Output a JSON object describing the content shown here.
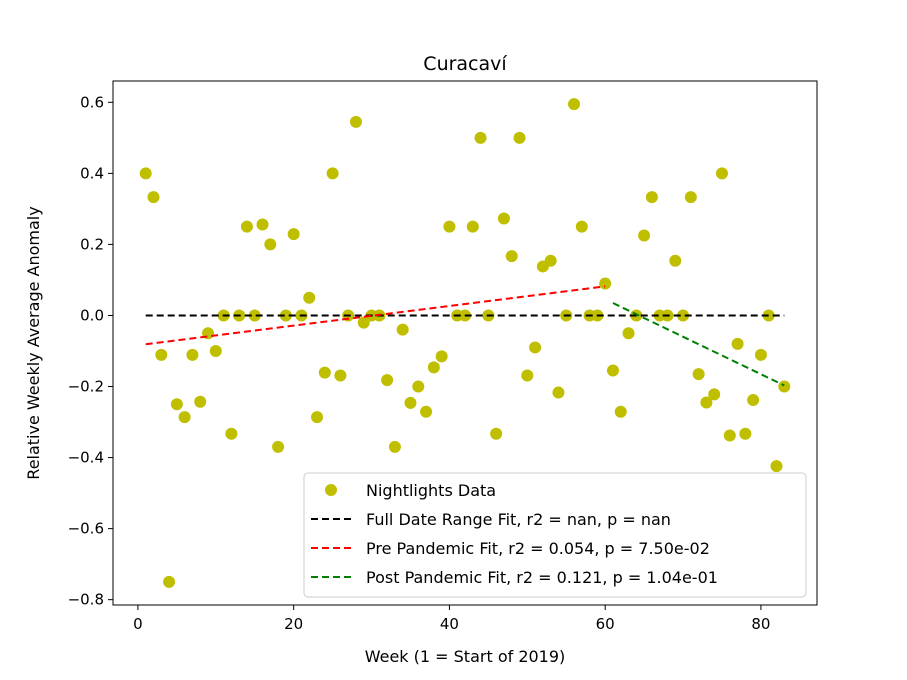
{
  "chart_data": {
    "type": "scatter",
    "title": "Curacaví",
    "xlabel": "Week (1 = Start of 2019)",
    "ylabel": "Relative Weekly Average Anomaly",
    "xlim": [
      -3.2,
      87.2
    ],
    "ylim": [
      -0.815,
      0.66
    ],
    "xticks": [
      0,
      20,
      40,
      60,
      80
    ],
    "yticks": [
      -0.8,
      -0.6,
      -0.4,
      -0.2,
      0.0,
      0.2,
      0.4,
      0.6
    ],
    "xtick_labels": [
      "0",
      "20",
      "40",
      "60",
      "80"
    ],
    "ytick_labels": [
      "−0.8",
      "−0.6",
      "−0.4",
      "−0.2",
      "0.0",
      "0.2",
      "0.4",
      "0.6"
    ],
    "grid": false,
    "legend_position": "lower-right",
    "series": [
      {
        "name": "Nightlights Data",
        "kind": "scatter",
        "color": "#bfbf00",
        "points": [
          [
            1,
            0.4
          ],
          [
            2,
            0.333
          ],
          [
            3,
            -0.111
          ],
          [
            4,
            -0.75
          ],
          [
            5,
            -0.25
          ],
          [
            6,
            -0.286
          ],
          [
            7,
            -0.111
          ],
          [
            8,
            -0.243
          ],
          [
            9,
            -0.05
          ],
          [
            10,
            -0.1
          ],
          [
            11,
            0.0
          ],
          [
            12,
            -0.333
          ],
          [
            13,
            0.0
          ],
          [
            14,
            0.25
          ],
          [
            15,
            0.0
          ],
          [
            16,
            0.256
          ],
          [
            17,
            0.2
          ],
          [
            18,
            -0.37
          ],
          [
            19,
            0.0
          ],
          [
            20,
            0.229
          ],
          [
            21,
            0.0
          ],
          [
            22,
            0.05
          ],
          [
            23,
            -0.286
          ],
          [
            24,
            -0.161
          ],
          [
            25,
            0.4
          ],
          [
            26,
            -0.169
          ],
          [
            27,
            0.0
          ],
          [
            28,
            0.545
          ],
          [
            29,
            -0.02
          ],
          [
            30,
            0.0
          ],
          [
            31,
            0.0
          ],
          [
            32,
            -0.182
          ],
          [
            33,
            -0.37
          ],
          [
            34,
            -0.04
          ],
          [
            35,
            -0.246
          ],
          [
            36,
            -0.2
          ],
          [
            37,
            -0.271
          ],
          [
            38,
            -0.146
          ],
          [
            39,
            -0.115
          ],
          [
            40,
            0.25
          ],
          [
            41,
            0.0
          ],
          [
            42,
            0.0
          ],
          [
            43,
            0.25
          ],
          [
            44,
            0.5
          ],
          [
            45,
            0.0
          ],
          [
            46,
            -0.333
          ],
          [
            47,
            0.273
          ],
          [
            48,
            0.167
          ],
          [
            49,
            0.5
          ],
          [
            50,
            -0.169
          ],
          [
            51,
            -0.09
          ],
          [
            52,
            0.138
          ],
          [
            53,
            0.154
          ],
          [
            54,
            -0.217
          ],
          [
            55,
            0.0
          ],
          [
            56,
            0.595
          ],
          [
            57,
            0.25
          ],
          [
            58,
            0.0
          ],
          [
            59,
            0.0
          ],
          [
            60,
            0.09
          ],
          [
            61,
            -0.155
          ],
          [
            62,
            -0.271
          ],
          [
            63,
            -0.05
          ],
          [
            64,
            0.0
          ],
          [
            65,
            0.225
          ],
          [
            66,
            0.333
          ],
          [
            67,
            0.0
          ],
          [
            68,
            0.0
          ],
          [
            69,
            0.154
          ],
          [
            70,
            0.0
          ],
          [
            71,
            0.333
          ],
          [
            72,
            -0.165
          ],
          [
            73,
            -0.245
          ],
          [
            74,
            -0.222
          ],
          [
            75,
            0.4
          ],
          [
            76,
            -0.338
          ],
          [
            77,
            -0.08
          ],
          [
            78,
            -0.333
          ],
          [
            79,
            -0.238
          ],
          [
            80,
            -0.111
          ],
          [
            81,
            0.0
          ],
          [
            82,
            -0.424
          ],
          [
            83,
            -0.2
          ]
        ]
      },
      {
        "name": "Full Date Range Fit, r2 = nan, p = nan",
        "kind": "line",
        "color": "#000000",
        "points": [
          [
            1,
            0.0
          ],
          [
            83,
            0.0
          ]
        ]
      },
      {
        "name": "Pre Pandemic Fit, r2 = 0.054, p = 7.50e-02",
        "kind": "line",
        "color": "#ff0000",
        "points": [
          [
            1,
            -0.081
          ],
          [
            60,
            0.082
          ]
        ]
      },
      {
        "name": "Post Pandemic Fit, r2 = 0.121, p = 1.04e-01",
        "kind": "line",
        "color": "#008000",
        "points": [
          [
            61,
            0.035
          ],
          [
            83,
            -0.197
          ]
        ]
      }
    ]
  }
}
